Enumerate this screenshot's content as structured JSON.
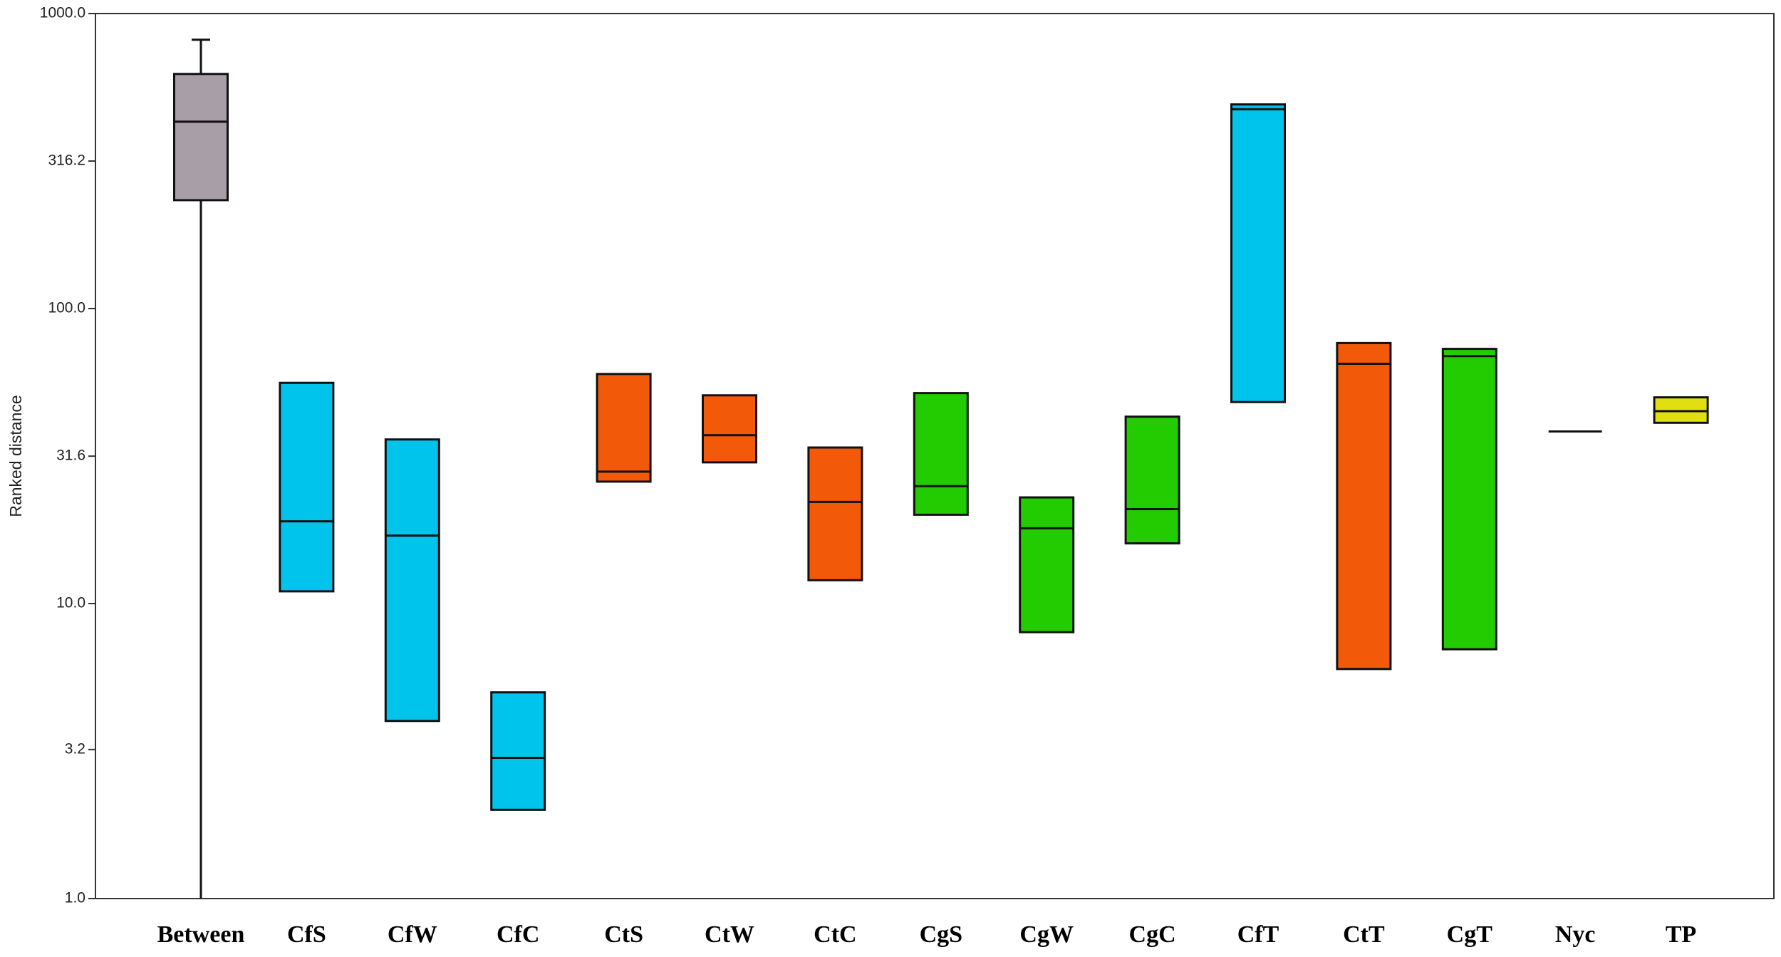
{
  "chart_data": {
    "type": "box",
    "y_label": "Ranked distance",
    "log_scale": true,
    "ylim": [
      1,
      1000
    ],
    "yticks": [
      {
        "value": 1000,
        "label": "1000.0"
      },
      316.2,
      {
        "value": 100,
        "label": "100.0"
      },
      31.6,
      {
        "value": 10,
        "label": "10.0"
      },
      3.2,
      {
        "value": 1,
        "label": "1.0"
      }
    ],
    "categories": [
      "Between",
      "CfS",
      "CfW",
      "CfC",
      "CtS",
      "CtW",
      "CtC",
      "CgS",
      "CgW",
      "CgC",
      "CfT",
      "CtT",
      "CgT",
      "Nyc",
      "TP"
    ],
    "boxes": [
      {
        "whisker_low": 1,
        "q1": 233,
        "median": 430,
        "q3": 624,
        "whisker_high": 815,
        "color": "#a89ea8"
      },
      {
        "q1": 11,
        "median": 19,
        "q3": 56,
        "color": "#00c4ec"
      },
      {
        "q1": 4.0,
        "median": 17,
        "q3": 36,
        "color": "#00c4ec"
      },
      {
        "q1": 2.0,
        "median": 3.0,
        "q3": 5.0,
        "color": "#00c4ec"
      },
      {
        "q1": 25.9,
        "median": 28,
        "q3": 60,
        "color": "#f25a0a"
      },
      {
        "q1": 30.1,
        "median": 37.2,
        "q3": 50.8,
        "color": "#f25a0a"
      },
      {
        "q1": 12.0,
        "median": 22.1,
        "q3": 33.8,
        "color": "#f25a0a"
      },
      {
        "q1": 20,
        "median": 25,
        "q3": 51.7,
        "color": "#22cc00"
      },
      {
        "q1": 8.0,
        "median": 18,
        "q3": 22.9,
        "color": "#22cc00"
      },
      {
        "q1": 16,
        "median": 20.9,
        "q3": 43,
        "color": "#22cc00"
      },
      {
        "q1": 48.2,
        "median": 474,
        "q3": 492,
        "color": "#00c4ec"
      },
      {
        "q1": 6.0,
        "median": 65,
        "q3": 76.4,
        "color": "#f25a0a"
      },
      {
        "q1": 7.0,
        "median": 69,
        "q3": 73,
        "color": "#22cc00"
      },
      {
        "q1": 38.3,
        "median": 38.3,
        "q3": 38.3,
        "color": "#000000"
      },
      {
        "q1": 41,
        "median": 44.9,
        "q3": 50,
        "color": "#e0e010"
      }
    ]
  }
}
